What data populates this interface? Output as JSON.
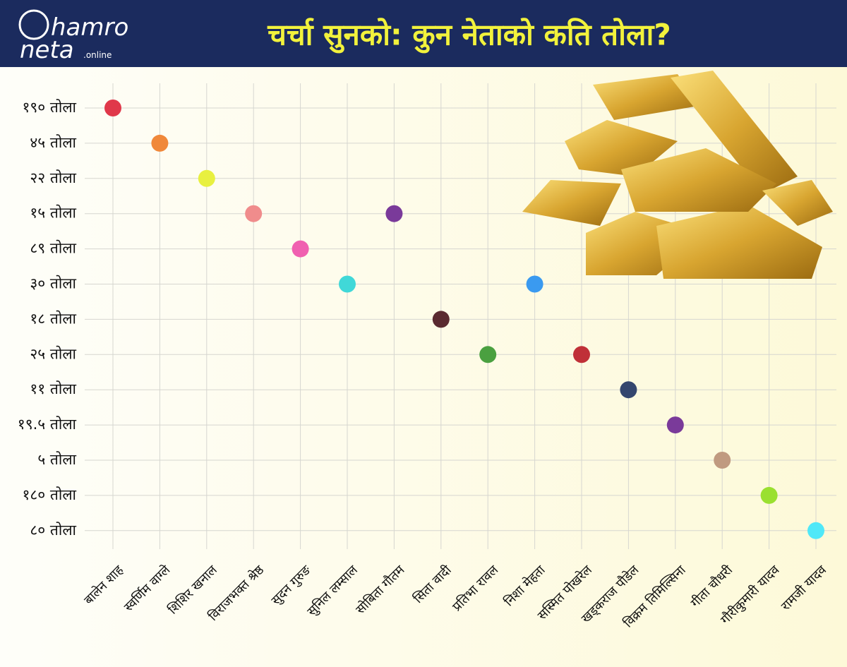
{
  "header": {
    "logo": {
      "line1": "hamro",
      "line2": "neta",
      "suffix": ".online"
    }
  },
  "chart_data": {
    "type": "dot",
    "title": "चर्चा सुनको: कुन नेताको कति तोला?",
    "categories": [
      "बालेन शाह",
      "स्वर्णिम वाग्ले",
      "शिशिर खनाल",
      "विराजभक्त श्रेष्ठ",
      "सुदन गुरुङ",
      "सुनिल लम्साल",
      "सोबिता गौतम",
      "सिता वादी",
      "प्रतिभा रावल",
      "निशा मेहता",
      "सस्मित पोखरेल",
      "खड्कराज पौडेल",
      "विक्रम तिमिल्सिना",
      "गीता चौधरी",
      "गौरीकुमारी यादव",
      "रामजी यादव"
    ],
    "y_categories": [
      "१९० तोला",
      "४५ तोला",
      "२२ तोला",
      "१५ तोला",
      "८९ तोला",
      "३० तोला",
      "१८ तोला",
      "२५ तोला",
      "११ तोला",
      "१९.५ तोला",
      "५ तोला",
      "१८० तोला",
      "८० तोला"
    ],
    "values": [
      "१९० तोला",
      "४५ तोला",
      "२२ तोला",
      "१५ तोला",
      "८९ तोला",
      "३० तोला",
      "१५ तोला",
      "१८ तोला",
      "२५ तोला",
      "३० तोला",
      "२५ तोला",
      "११ तोला",
      "१९.५ तोला",
      "५ तोला",
      "१८० तोला",
      "८० तोला"
    ],
    "colors": [
      "#e0384a",
      "#f0883a",
      "#e8f040",
      "#f08c8c",
      "#f060b0",
      "#40d8d8",
      "#7a3a9a",
      "#5a2a30",
      "#4aa040",
      "#3a9af0",
      "#c03038",
      "#34466e",
      "#7a3a9a",
      "#c09a80",
      "#9ae030",
      "#50e8f8"
    ],
    "grid": true
  }
}
